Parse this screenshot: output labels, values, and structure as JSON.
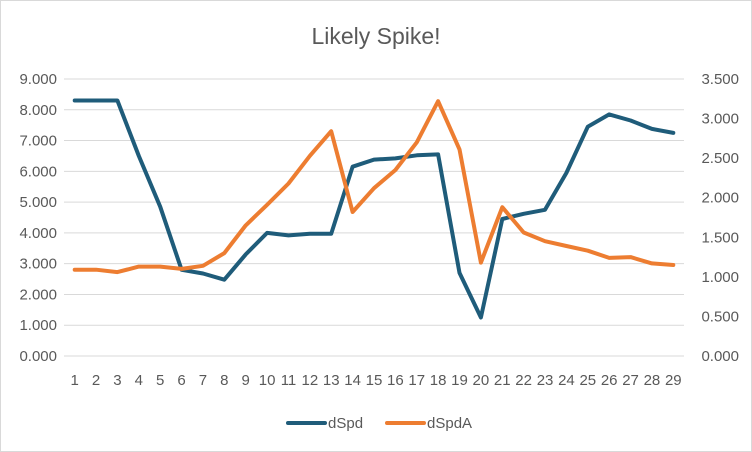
{
  "chart_data": {
    "type": "line",
    "title": "Likely Spike!",
    "xlabel": "",
    "ylabel": "",
    "categories": [
      "1",
      "2",
      "3",
      "4",
      "5",
      "6",
      "7",
      "8",
      "9",
      "10",
      "11",
      "12",
      "13",
      "14",
      "15",
      "16",
      "17",
      "18",
      "19",
      "20",
      "21",
      "22",
      "23",
      "24",
      "25",
      "26",
      "27",
      "28",
      "29"
    ],
    "y_left": {
      "min": 0,
      "max": 9,
      "step": 1,
      "tick_labels": [
        "0.000",
        "1.000",
        "2.000",
        "3.000",
        "4.000",
        "5.000",
        "6.000",
        "7.000",
        "8.000",
        "9.000"
      ]
    },
    "y_right": {
      "min": 0,
      "max": 3.5,
      "step": 0.5,
      "tick_labels": [
        "0.000",
        "0.500",
        "1.000",
        "1.500",
        "2.000",
        "2.500",
        "3.000",
        "3.500"
      ]
    },
    "grid": true,
    "legend_position": "bottom",
    "series": [
      {
        "name": "dSpd",
        "axis": "left",
        "color": "#1f5c7a",
        "values": [
          8.3,
          8.3,
          8.3,
          6.5,
          4.85,
          2.8,
          2.68,
          2.48,
          3.3,
          4.0,
          3.92,
          3.97,
          3.97,
          6.15,
          6.38,
          6.42,
          6.52,
          6.55,
          2.7,
          1.25,
          4.45,
          4.62,
          4.75,
          5.95,
          7.45,
          7.85,
          7.65,
          7.38,
          7.25
        ]
      },
      {
        "name": "dSpdA",
        "axis": "right",
        "color": "#ed7d31",
        "values": [
          1.09,
          1.09,
          1.06,
          1.13,
          1.13,
          1.1,
          1.14,
          1.3,
          1.65,
          1.91,
          2.18,
          2.53,
          2.84,
          1.82,
          2.12,
          2.35,
          2.7,
          3.22,
          2.61,
          1.18,
          1.88,
          1.56,
          1.45,
          1.39,
          1.33,
          1.24,
          1.25,
          1.17,
          1.15
        ]
      }
    ]
  }
}
